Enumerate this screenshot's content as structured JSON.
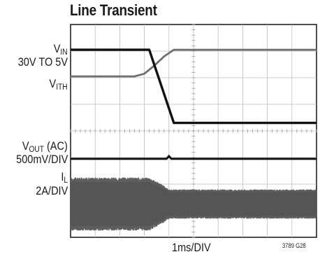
{
  "chart_data": {
    "type": "line",
    "title": "Line Transient",
    "xlabel": "1ms/DIV",
    "figure_id": "3789 G28",
    "x_divisions": 10,
    "y_divisions": 8,
    "grid": true,
    "xlim": [
      0,
      10
    ],
    "ylim": [
      0,
      8
    ],
    "channel_labels": [
      {
        "name": "V",
        "sub": "IN"
      },
      {
        "name": "30V TO 5V",
        "sub": ""
      },
      {
        "name": "V",
        "sub": "ITH"
      },
      {
        "name": "V",
        "sub": "OUT",
        "suffix": " (AC)"
      },
      {
        "name": "500mV/DIV",
        "sub": ""
      },
      {
        "name": "I",
        "sub": "L"
      },
      {
        "name": "2A/DIV",
        "sub": ""
      }
    ],
    "series": [
      {
        "name": "VIN",
        "color": "#111111",
        "x": [
          0,
          3.2,
          4.2,
          10
        ],
        "y": [
          7.05,
          7.05,
          4.3,
          4.3
        ]
      },
      {
        "name": "VITH",
        "color": "#6f6f6f",
        "x": [
          0,
          2.6,
          3.0,
          3.4,
          3.8,
          4.2,
          10
        ],
        "y": [
          6.05,
          6.05,
          6.15,
          6.45,
          6.8,
          7.05,
          7.05
        ]
      },
      {
        "name": "VOUT",
        "color": "#111111",
        "x": [
          0,
          3.9,
          4.0,
          4.1,
          10
        ],
        "y": [
          2.95,
          2.95,
          3.05,
          2.95,
          2.95
        ]
      },
      {
        "name": "IL",
        "color": "#555555",
        "x": [
          0,
          3.2,
          3.7,
          4.0,
          10
        ],
        "y_center": [
          1.25,
          1.25,
          1.25,
          1.25,
          1.25
        ],
        "y_envelope": [
          1.0,
          1.0,
          0.75,
          0.55,
          0.55
        ]
      }
    ]
  }
}
